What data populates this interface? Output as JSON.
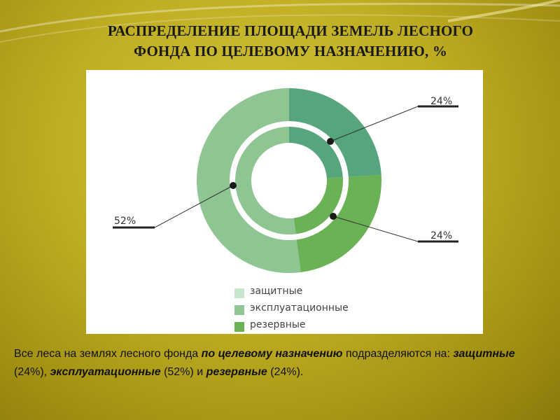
{
  "title": {
    "line1": "РАСПРЕДЕЛЕНИЕ ПЛОЩАДИ ЗЕМЕЛЬ ЛЕСНОГО",
    "line2": "ФОНДА ПО ЦЕЛЕВОМУ НАЗНАЧЕНИЮ, %"
  },
  "chart_data": {
    "type": "pie",
    "variant": "double-ring donut",
    "slices": [
      {
        "label": "защитные",
        "value": 24,
        "value_label": "24%",
        "color": "#56a57c"
      },
      {
        "label": "эксплуатационные",
        "value": 52,
        "value_label": "52%",
        "color": "#8fc592"
      },
      {
        "label": "резервные",
        "value": 24,
        "value_label": "24%",
        "color": "#6ab255"
      }
    ],
    "legend": {
      "placement": "bottom",
      "items": [
        {
          "label": "защитные",
          "color": "#c7e4cc"
        },
        {
          "label": "эксплуатационные",
          "color": "#8fc592"
        },
        {
          "label": "резервные",
          "color": "#6ab255"
        }
      ]
    }
  },
  "caption": {
    "p1": "Все леса на землях лесного фонда ",
    "p2": "по целевому назначению",
    "p3": " подразделяются на: ",
    "p4": "защитные",
    "p5": " (24%), ",
    "p6": "эксплуатационные",
    "p7": " (52%) и ",
    "p8": "резервные",
    "p9": " (24%)."
  }
}
